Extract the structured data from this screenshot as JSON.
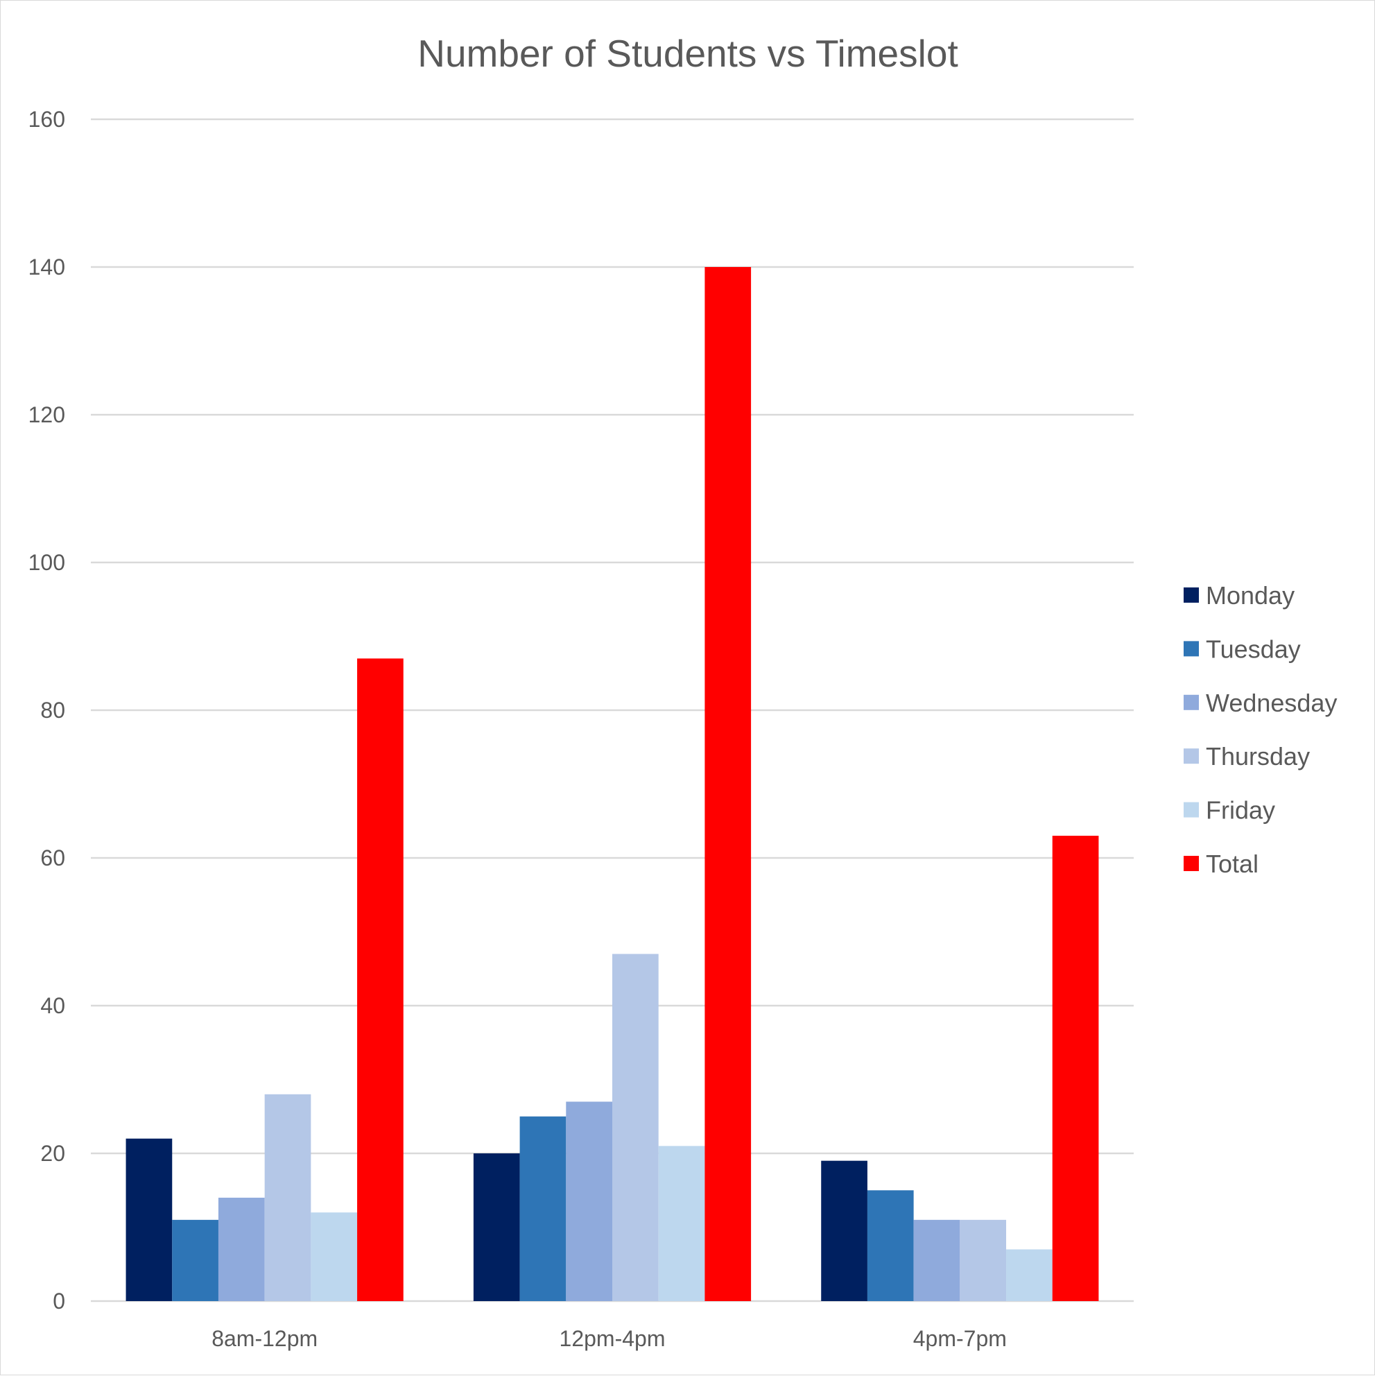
{
  "chart_data": {
    "type": "bar",
    "title": "Number of Students vs Timeslot",
    "xlabel": "",
    "ylabel": "",
    "categories": [
      "8am-12pm",
      "12pm-4pm",
      "4pm-7pm"
    ],
    "series": [
      {
        "name": "Monday",
        "color": "#002060",
        "values": [
          22,
          20,
          19
        ]
      },
      {
        "name": "Tuesday",
        "color": "#2E75B6",
        "values": [
          11,
          25,
          15
        ]
      },
      {
        "name": "Wednesday",
        "color": "#8FAADC",
        "values": [
          14,
          27,
          11
        ]
      },
      {
        "name": "Thursday",
        "color": "#B4C7E7",
        "values": [
          28,
          47,
          11
        ]
      },
      {
        "name": "Friday",
        "color": "#BDD7EE",
        "values": [
          12,
          21,
          7
        ]
      },
      {
        "name": "Total",
        "color": "#FF0000",
        "values": [
          87,
          140,
          63
        ]
      }
    ],
    "ylim": [
      0,
      160
    ],
    "yticks": [
      0,
      20,
      40,
      60,
      80,
      100,
      120,
      140,
      160
    ],
    "grid": true,
    "legend": "right"
  }
}
